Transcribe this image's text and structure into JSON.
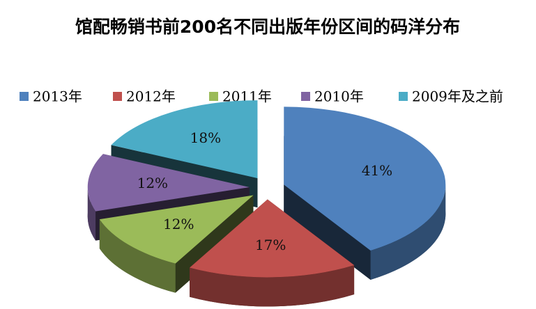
{
  "chart_data": {
    "type": "pie",
    "title": "馆配畅销书前200名不同出版年份区间的码洋分布",
    "categories": [
      "2013年",
      "2012年",
      "2011年",
      "2010年",
      "2009年及之前"
    ],
    "values": [
      41,
      17,
      12,
      12,
      18
    ],
    "value_labels": [
      "41%",
      "17%",
      "12%",
      "12%",
      "18%"
    ],
    "colors": [
      "#4f81bd",
      "#c0504d",
      "#9bbb59",
      "#8064a2",
      "#4bacc6"
    ],
    "legend": "top"
  }
}
